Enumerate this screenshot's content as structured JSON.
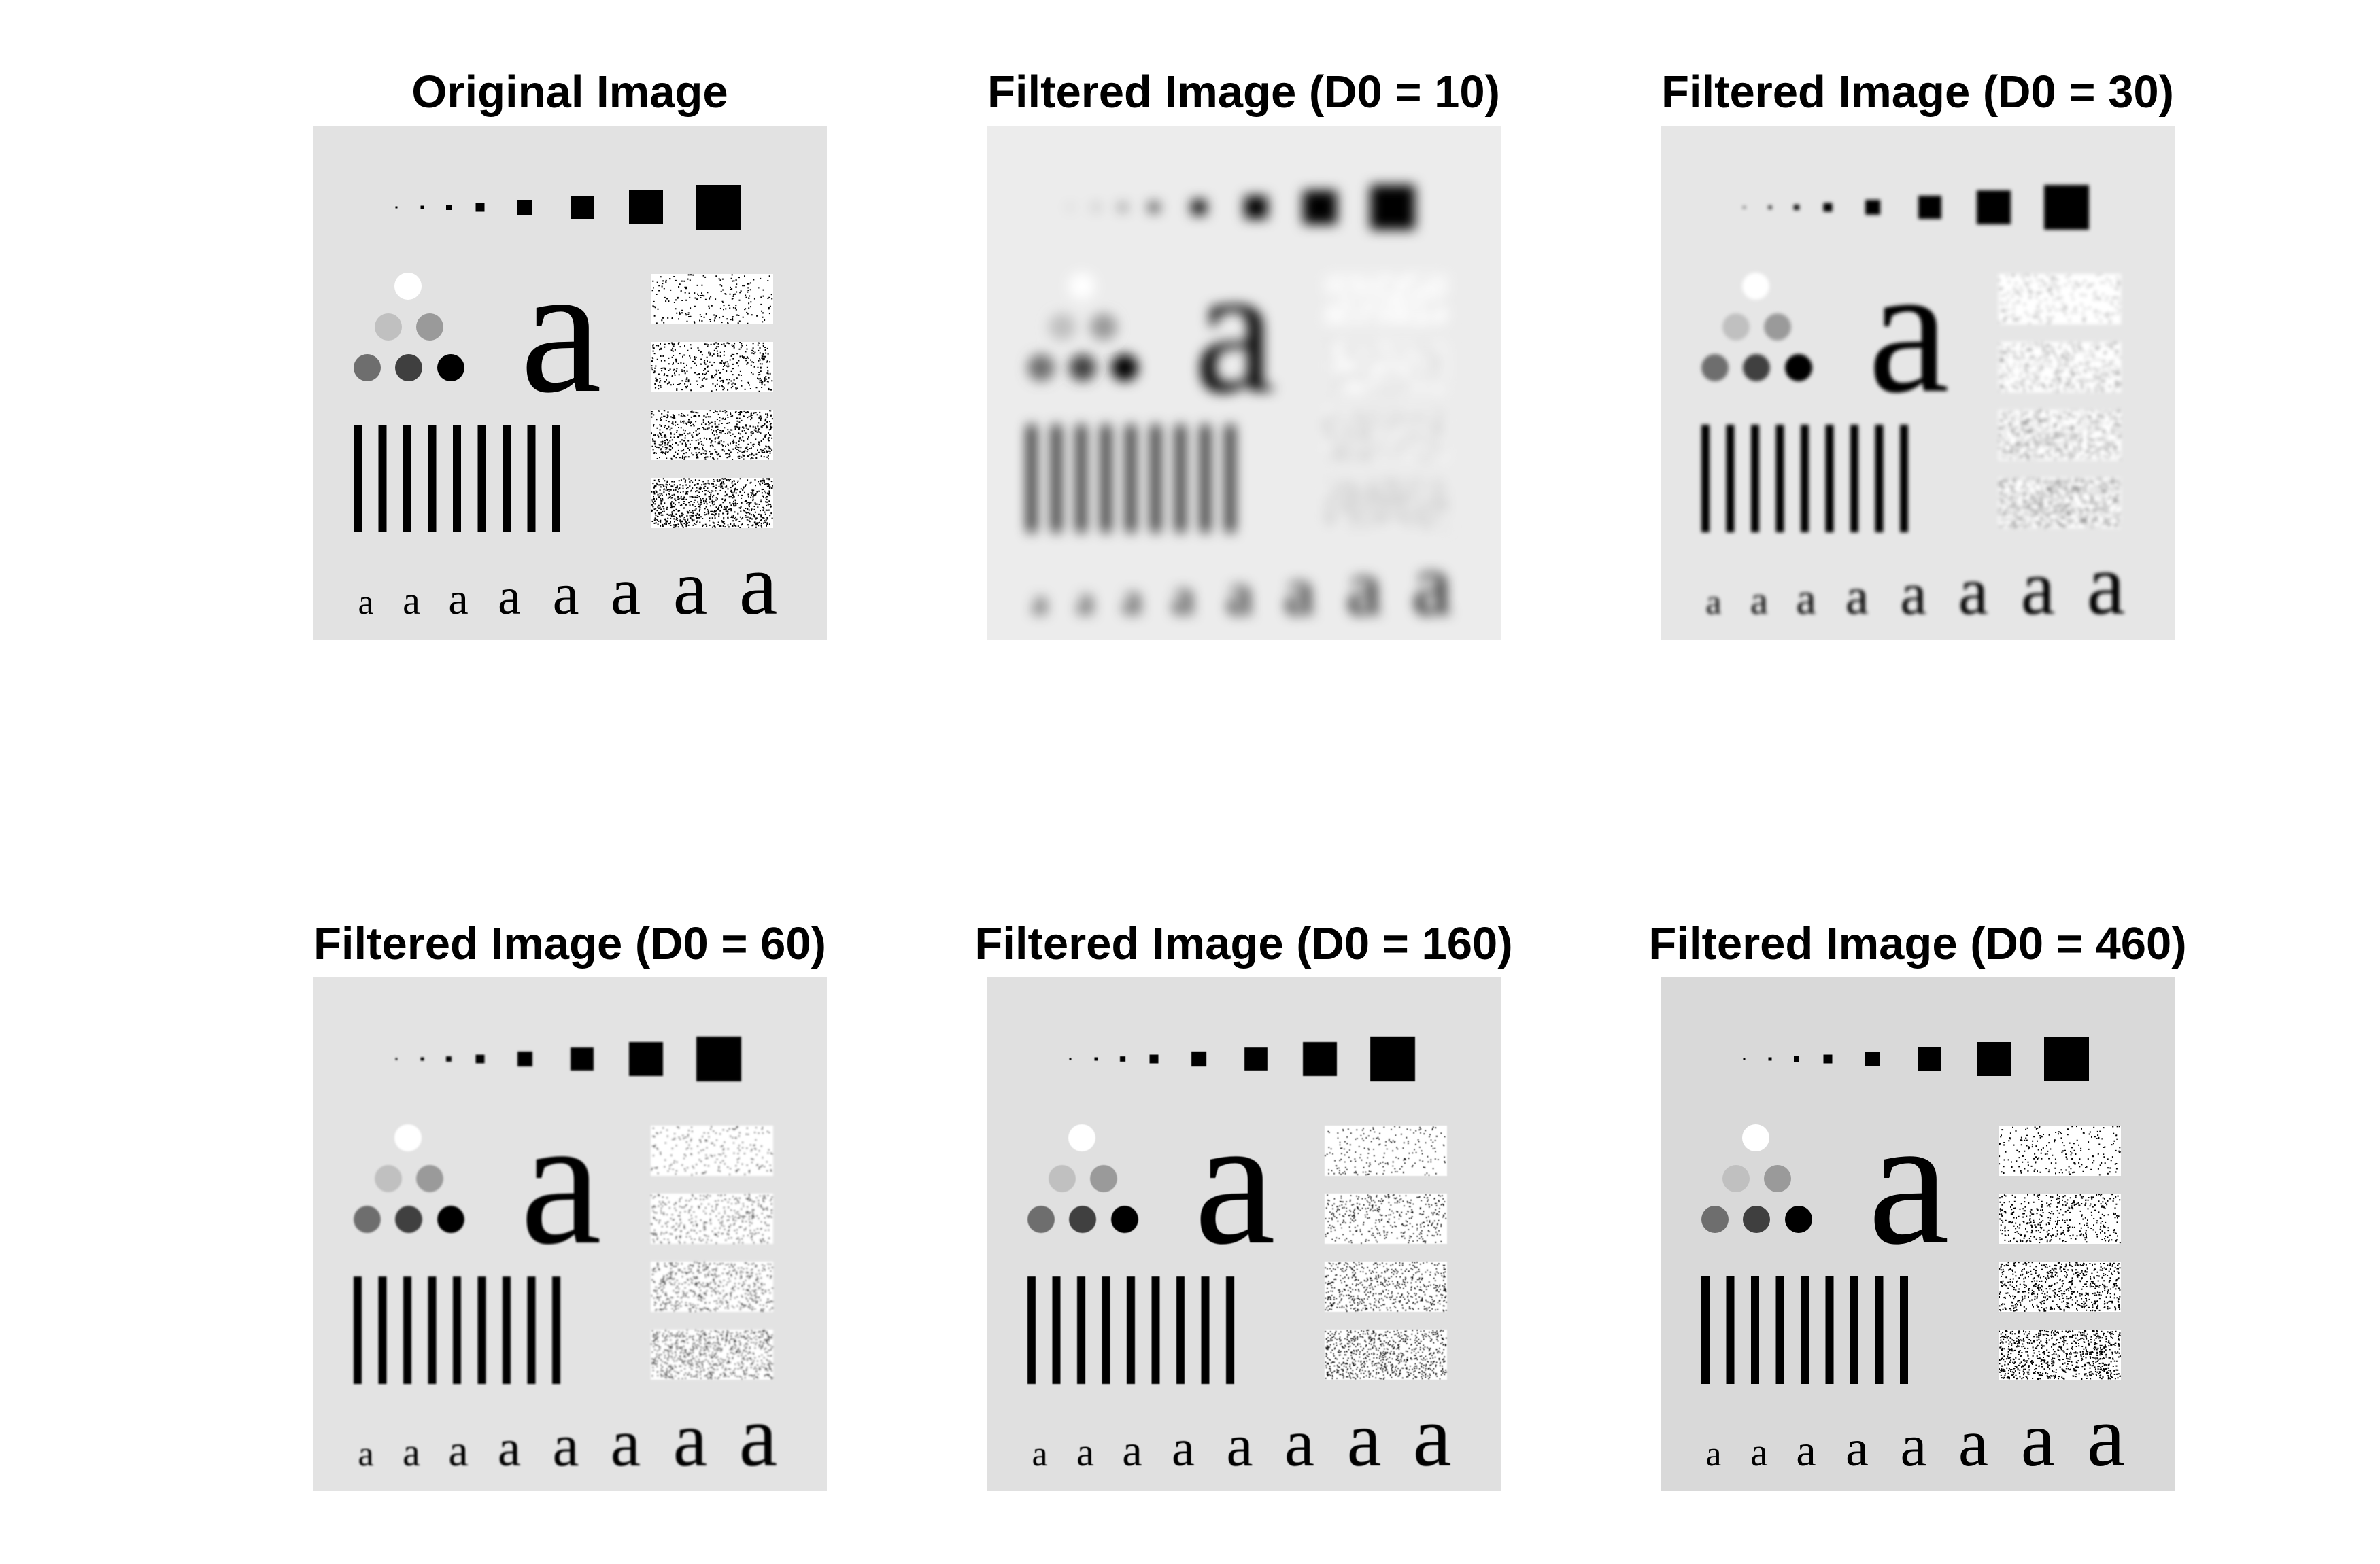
{
  "figure": {
    "panels": [
      {
        "id": "orig",
        "title": "Original Image",
        "blur": 0,
        "bg": "#e2e2e2"
      },
      {
        "id": "d10",
        "title": "Filtered Image (D0 = 10)",
        "blur": 9,
        "bg": "#ececec"
      },
      {
        "id": "d30",
        "title": "Filtered Image (D0 = 30)",
        "blur": 2.6,
        "bg": "#e6e6e6"
      },
      {
        "id": "d60",
        "title": "Filtered Image (D0 = 60)",
        "blur": 1.2,
        "bg": "#e3e3e3"
      },
      {
        "id": "d160",
        "title": "Filtered Image (D0 = 160)",
        "blur": 0.4,
        "bg": "#e0e0e0"
      },
      {
        "id": "d460",
        "title": "Filtered Image (D0 = 460)",
        "blur": 0,
        "bg": "#d9d9d9"
      }
    ],
    "glyph": "a"
  }
}
